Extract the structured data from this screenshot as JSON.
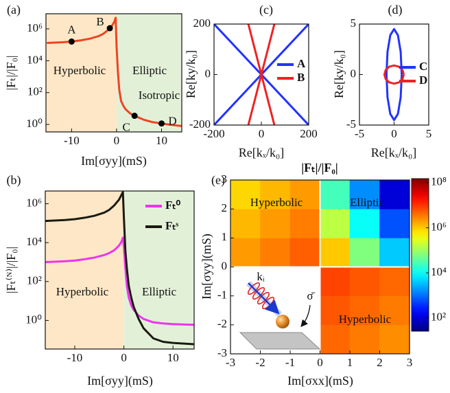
{
  "chart_data": [
    {
      "type": "line",
      "panel_label": "(a)",
      "xlabel": "Im[σyy](mS)",
      "ylabel": "|Fₜ|/|F₀|",
      "xlim": [
        -15.7,
        14.5
      ],
      "xticks": [
        -10,
        0,
        10
      ],
      "ylog": true,
      "ylim": [
        0.34,
        8900000
      ],
      "yticks": [
        {
          "value": 1,
          "label": "10⁰"
        },
        {
          "value": 100,
          "label": "10²"
        },
        {
          "value": 10000,
          "label": "10⁴"
        },
        {
          "value": 1000000,
          "label": "10⁶"
        }
      ],
      "shading": [
        "#fde7c6",
        "#e3f0d8"
      ],
      "x": [
        -15.5,
        -12,
        -10,
        -8,
        -6,
        -4,
        -3,
        -2,
        -1,
        -0.5,
        -0.2,
        0,
        0.3,
        0.6,
        1,
        1.5,
        2,
        3,
        4,
        6,
        8,
        10,
        12,
        14.5
      ],
      "series": [
        {
          "color": "#ee4422",
          "values": [
            130000,
            145000,
            160000,
            190000,
            240000,
            350000,
            480000,
            800000,
            1600000,
            2800000,
            5000000,
            80000,
            2000,
            150,
            30,
            15,
            9,
            5,
            3.5,
            2,
            1.4,
            1.15,
            0.95,
            0.8
          ]
        }
      ],
      "points": {
        "labels": [
          "A",
          "B",
          "C",
          "D"
        ],
        "x": [
          -10,
          -1.5,
          4,
          10
        ],
        "values": [
          160000,
          1100000,
          3.5,
          1.15
        ],
        "color": "#000000"
      },
      "annotations": [
        "Hyperbolic",
        "Elliptic",
        "Isotropic"
      ]
    },
    {
      "type": "line",
      "panel_label": "(b)",
      "xlabel": "Im[σyy](mS)",
      "ylabel": "|Fₜ⁽ᴺ⁾|/|F₀|",
      "xlim": [
        -16,
        14.3
      ],
      "xticks": [
        -10,
        0,
        10
      ],
      "ylog": true,
      "ylim": [
        0.034,
        4500000
      ],
      "yticks": [
        {
          "value": 1,
          "label": "10⁰"
        },
        {
          "value": 100,
          "label": "10²"
        },
        {
          "value": 10000,
          "label": "10⁴"
        },
        {
          "value": 1000000,
          "label": "10⁶"
        }
      ],
      "shading": [
        "#fde7c6",
        "#e3f0d8"
      ],
      "legend": "upper right",
      "x": [
        -16,
        -12,
        -10,
        -8,
        -6,
        -4,
        -3,
        -2,
        -1,
        -0.5,
        -0.2,
        0,
        0.3,
        0.6,
        1,
        1.5,
        2,
        3,
        4,
        6,
        8,
        10,
        12,
        14.3
      ],
      "series": [
        {
          "name": "Fₜ⁰",
          "color": "#ee33ee",
          "values": [
            1000,
            1100,
            1200,
            1400,
            1700,
            2300,
            2900,
            4000,
            7000,
            11000,
            18000,
            6000,
            500,
            60,
            15,
            6,
            3.5,
            1.8,
            1.2,
            0.8,
            0.7,
            0.65,
            0.62,
            0.6
          ]
        },
        {
          "name": "Fₜˢ",
          "color": "#1a1a10",
          "values": [
            130000,
            145000,
            160000,
            190000,
            240000,
            350000,
            480000,
            800000,
            1600000,
            2800000,
            4000000,
            200000,
            4000,
            500,
            60,
            15,
            5,
            1.2,
            0.4,
            0.12,
            0.08,
            0.07,
            0.065,
            0.06
          ]
        }
      ],
      "annotations": [
        "Hyperbolic",
        "Elliptic"
      ]
    },
    {
      "type": "line",
      "panel_label": "(c)",
      "xlabel": "Re[kₓ/k₀]",
      "ylabel": "Re[ky/k₀]",
      "xlim": [
        -200,
        200
      ],
      "xticks": [
        -200,
        0,
        200
      ],
      "ylim": [
        -200,
        200
      ],
      "yticks": [
        -200,
        0,
        200
      ],
      "legend": "right",
      "series": [
        {
          "name": "A",
          "color": "#2233ff",
          "x": [
            -200,
            200,
            null,
            -200,
            200
          ],
          "values": [
            200,
            -200,
            null,
            -200,
            200
          ]
        },
        {
          "name": "B",
          "color": "#ee2222",
          "x": [
            -55,
            55,
            null,
            -55,
            55
          ],
          "values": [
            -200,
            200,
            null,
            200,
            -200
          ]
        }
      ]
    },
    {
      "type": "line",
      "panel_label": "(d)",
      "xlabel": "Re[kₓ/k₀]",
      "ylabel": "Re[ky/k₀]",
      "xlim": [
        -5,
        5
      ],
      "xticks": [
        -5,
        0,
        5
      ],
      "ylim": [
        -5,
        5
      ],
      "yticks": [
        -5,
        0,
        5
      ],
      "legend": "right",
      "series": [
        {
          "name": "C",
          "color": "#2233ff",
          "x": [
            1.1,
            0.95,
            0.55,
            0,
            -0.55,
            -0.95,
            -1.1,
            -0.95,
            -0.55,
            0,
            0.55,
            0.95,
            1.1
          ],
          "values": [
            0,
            2.25,
            3.9,
            4.5,
            3.9,
            2.25,
            0,
            -2.25,
            -3.9,
            -4.5,
            -3.9,
            -2.25,
            0
          ]
        },
        {
          "name": "D",
          "color": "#ee2222",
          "x": [
            1.4,
            1.21,
            0.7,
            0,
            -0.7,
            -1.21,
            -1.4,
            -1.21,
            -0.7,
            0,
            0.7,
            1.21,
            1.4
          ],
          "values": [
            0,
            0.45,
            0.78,
            0.9,
            0.78,
            0.45,
            0,
            -0.45,
            -0.78,
            -0.9,
            -0.78,
            -0.45,
            0
          ]
        }
      ]
    },
    {
      "type": "heatmap",
      "panel_label": "(e)",
      "title": "|Fₜ|/|F₀|",
      "xlabel": "Im[σxx](mS)",
      "ylabel": "Im[σyy](mS)",
      "xlim": [
        -3,
        3
      ],
      "xticks": [
        -3,
        -2,
        -1,
        0,
        1,
        2,
        3
      ],
      "ylim": [
        -3,
        3
      ],
      "yticks": [
        -3,
        -2,
        -1,
        0,
        1,
        2,
        3
      ],
      "x": [
        -2.5,
        -1.5,
        -0.5,
        0.5,
        1.5,
        2.5
      ],
      "y": [
        -2.5,
        -1.5,
        -0.5,
        0.5,
        1.5,
        2.5
      ],
      "z": [
        [
          null,
          null,
          null,
          4400000,
          3300000,
          2500000
        ],
        [
          null,
          null,
          null,
          5800000,
          4400000,
          3300000
        ],
        [
          null,
          null,
          null,
          7600000,
          5800000,
          4400000
        ],
        [
          2000000,
          3200000,
          5000000,
          1000000,
          63000,
          4000
        ],
        [
          1300000,
          2000000,
          3200000,
          160000,
          10000,
          630
        ],
        [
          800000,
          1300000,
          2000000,
          25000,
          1600,
          100
        ]
      ],
      "colormap": "jet",
      "clog": true,
      "clim": [
        26,
        150000000
      ],
      "cticks": [
        {
          "value": 100,
          "label": "10²"
        },
        {
          "value": 10000,
          "label": "10⁴"
        },
        {
          "value": 1000000,
          "label": "10⁶"
        },
        {
          "value": 100000000,
          "label": "10⁸"
        }
      ],
      "annotations": [
        "Hyperbolic",
        "Elliptic",
        "Hyperbolic",
        "kᵢ",
        "σ̄"
      ]
    }
  ]
}
